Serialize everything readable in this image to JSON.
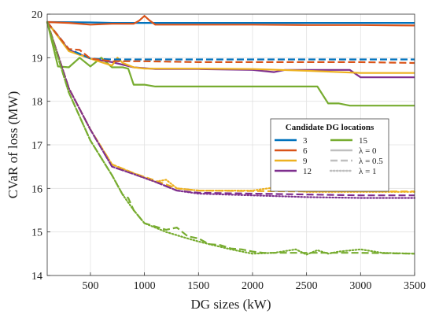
{
  "chart_data": {
    "type": "line",
    "xlabel": "DG sizes (kW)",
    "ylabel": "CVaR of loss (MW)",
    "xlim": [
      100,
      3500
    ],
    "ylim": [
      14,
      20
    ],
    "xticks": [
      500,
      1000,
      1500,
      2000,
      2500,
      3000,
      3500
    ],
    "yticks": [
      14,
      15,
      16,
      17,
      18,
      19,
      20
    ],
    "grid": true,
    "legend": {
      "title": "Candidate DG locations",
      "placement": "right",
      "location_entries": [
        {
          "label": "3",
          "color": "#0072BD"
        },
        {
          "label": "6",
          "color": "#D95319"
        },
        {
          "label": "9",
          "color": "#EDB120"
        },
        {
          "label": "12",
          "color": "#7E2F8E"
        },
        {
          "label": "15",
          "color": "#77AC30"
        }
      ],
      "lambda_entries": [
        {
          "label": "λ = 0",
          "style": "solid"
        },
        {
          "label": "λ = 0.5",
          "style": "dashed"
        },
        {
          "label": "λ = 1",
          "style": "dotted"
        }
      ]
    },
    "series": [
      {
        "location": "3",
        "lambda": "λ = 0",
        "color": "#0072BD",
        "style": "solid",
        "x": [
          100,
          500,
          700,
          1000,
          1500,
          2000,
          2500,
          3000,
          3500
        ],
        "y": [
          19.82,
          19.81,
          19.8,
          19.8,
          19.8,
          19.8,
          19.8,
          19.8,
          19.8
        ]
      },
      {
        "location": "6",
        "lambda": "λ = 0",
        "color": "#D95319",
        "style": "solid",
        "x": [
          100,
          300,
          500,
          700,
          900,
          950,
          1000,
          1050,
          1100,
          1500,
          2000,
          2500,
          3000,
          3500
        ],
        "y": [
          19.82,
          19.8,
          19.76,
          19.78,
          19.78,
          19.85,
          19.96,
          19.85,
          19.76,
          19.76,
          19.76,
          19.75,
          19.75,
          19.74
        ]
      },
      {
        "location": "15",
        "lambda": "λ = 0",
        "color": "#77AC30",
        "style": "solid",
        "x": [
          100,
          200,
          300,
          400,
          500,
          550,
          600,
          700,
          750,
          800,
          850,
          900,
          1000,
          1100,
          1500,
          2000,
          2500,
          2600,
          2700,
          2800,
          2900,
          3000,
          3500
        ],
        "y": [
          19.82,
          18.8,
          18.78,
          19.0,
          18.8,
          18.9,
          19.0,
          18.78,
          18.78,
          18.78,
          18.75,
          18.38,
          18.38,
          18.34,
          18.34,
          18.34,
          18.34,
          18.34,
          17.95,
          17.95,
          17.9,
          17.9,
          17.9
        ]
      },
      {
        "location": "12",
        "lambda": "λ = 0",
        "color": "#7E2F8E",
        "style": "solid",
        "x": [
          100,
          300,
          500,
          700,
          900,
          1100,
          1500,
          2000,
          2200,
          2300,
          2500,
          2900,
          3000,
          3500
        ],
        "y": [
          19.82,
          19.18,
          18.98,
          18.9,
          18.78,
          18.74,
          18.74,
          18.72,
          18.67,
          18.72,
          18.72,
          18.72,
          18.55,
          18.55
        ]
      },
      {
        "location": "9",
        "lambda": "λ = 0",
        "color": "#EDB120",
        "style": "solid",
        "x": [
          100,
          300,
          500,
          600,
          700,
          750,
          800,
          900,
          1000,
          1500,
          2000,
          2500,
          3000,
          3500
        ],
        "y": [
          19.82,
          19.15,
          18.98,
          18.9,
          18.82,
          19.0,
          18.88,
          18.78,
          18.75,
          18.75,
          18.74,
          18.7,
          18.65,
          18.65
        ]
      },
      {
        "location": "3",
        "lambda": "λ = 0.5",
        "color": "#0072BD",
        "style": "dashed",
        "x": [
          100,
          300,
          500,
          700,
          1000,
          1500,
          2000,
          2500,
          3000,
          3500
        ],
        "y": [
          19.82,
          19.2,
          18.98,
          18.96,
          18.96,
          18.96,
          18.96,
          18.96,
          18.96,
          18.96
        ]
      },
      {
        "location": "6",
        "lambda": "λ = 0.5",
        "color": "#D95319",
        "style": "dashed",
        "x": [
          100,
          300,
          400,
          500,
          700,
          1000,
          1500,
          2000,
          2500,
          3000,
          3500
        ],
        "y": [
          19.82,
          19.2,
          19.18,
          18.98,
          18.92,
          18.92,
          18.9,
          18.9,
          18.9,
          18.9,
          18.88
        ]
      },
      {
        "location": "9",
        "lambda": "λ = 0.5",
        "color": "#EDB120",
        "style": "dashed",
        "x": [
          100,
          300,
          500,
          700,
          900,
          1100,
          1300,
          1500,
          2000,
          2500,
          3000,
          3500
        ],
        "y": [
          19.82,
          18.3,
          17.35,
          16.55,
          16.35,
          16.18,
          16.0,
          15.95,
          15.94,
          15.93,
          15.93,
          15.93
        ]
      },
      {
        "location": "12",
        "lambda": "λ = 0.5",
        "color": "#7E2F8E",
        "style": "dashed",
        "x": [
          100,
          300,
          500,
          700,
          900,
          1100,
          1300,
          1500,
          2000,
          2500,
          3000,
          3500
        ],
        "y": [
          19.82,
          18.3,
          17.35,
          16.5,
          16.33,
          16.15,
          15.95,
          15.9,
          15.88,
          15.86,
          15.84,
          15.84
        ]
      },
      {
        "location": "15",
        "lambda": "λ = 0.5",
        "color": "#77AC30",
        "style": "dashed",
        "x": [
          100,
          300,
          500,
          700,
          800,
          850,
          900,
          1000,
          1200,
          1300,
          1400,
          1500,
          1600,
          1700,
          1800,
          1900,
          2000,
          2100,
          2200,
          2500,
          3000,
          3500
        ],
        "y": [
          19.82,
          18.2,
          17.1,
          16.3,
          15.85,
          15.78,
          15.5,
          15.2,
          15.05,
          15.1,
          14.9,
          14.85,
          14.72,
          14.7,
          14.62,
          14.6,
          14.55,
          14.52,
          14.52,
          14.52,
          14.52,
          14.5
        ]
      },
      {
        "location": "9",
        "lambda": "λ = 1",
        "color": "#EDB120",
        "style": "dotted",
        "x": [
          100,
          300,
          500,
          700,
          900,
          1100,
          1200,
          1300,
          1500,
          2000,
          2200,
          2400,
          2500,
          3000,
          3500
        ],
        "y": [
          19.82,
          18.3,
          17.35,
          16.55,
          16.35,
          16.15,
          16.2,
          16.0,
          15.95,
          15.95,
          16.02,
          15.95,
          15.92,
          15.92,
          15.92
        ]
      },
      {
        "location": "12",
        "lambda": "λ = 1",
        "color": "#7E2F8E",
        "style": "dotted",
        "x": [
          100,
          300,
          500,
          700,
          900,
          1100,
          1300,
          1500,
          2000,
          2500,
          3000,
          3500
        ],
        "y": [
          19.82,
          18.3,
          17.35,
          16.5,
          16.33,
          16.15,
          15.95,
          15.88,
          15.84,
          15.8,
          15.78,
          15.78
        ]
      },
      {
        "location": "15",
        "lambda": "λ = 1",
        "color": "#77AC30",
        "style": "dotted",
        "x": [
          100,
          300,
          500,
          700,
          800,
          900,
          1000,
          1200,
          1400,
          1500,
          1600,
          1800,
          2000,
          2200,
          2400,
          2500,
          2600,
          2700,
          2800,
          3000,
          3200,
          3500
        ],
        "y": [
          19.82,
          18.2,
          17.1,
          16.3,
          15.85,
          15.5,
          15.2,
          15.0,
          14.85,
          14.78,
          14.72,
          14.6,
          14.5,
          14.52,
          14.6,
          14.48,
          14.58,
          14.5,
          14.55,
          14.6,
          14.52,
          14.5
        ]
      }
    ]
  }
}
